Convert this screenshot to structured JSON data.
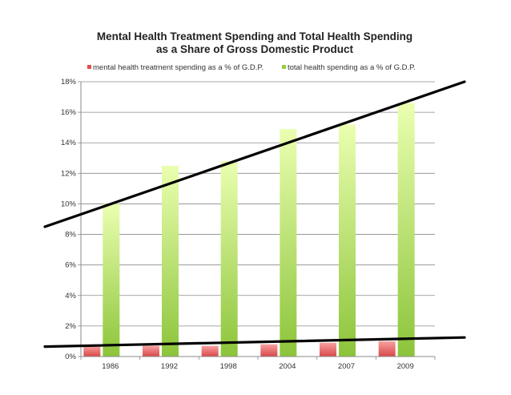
{
  "chart_data": {
    "type": "bar",
    "title_lines": [
      "Mental Health Treatment Spending and Total Health Spending",
      "as a Share of Gross Domestic Product"
    ],
    "categories": [
      "1986",
      "1992",
      "1998",
      "2004",
      "2007",
      "2009"
    ],
    "series": [
      {
        "name": "mental health treatment spending as a % of G.D.P.",
        "color": "#e05050",
        "values": [
          0.7,
          0.7,
          0.7,
          0.8,
          0.9,
          1.0
        ]
      },
      {
        "name": "total health spending as a % of G.D.P.",
        "color": "#9acd3c",
        "values": [
          10.0,
          12.5,
          12.8,
          14.9,
          15.2,
          16.6
        ]
      }
    ],
    "y_ticks": [
      "0%",
      "2%",
      "4%",
      "6%",
      "8%",
      "10%",
      "12%",
      "14%",
      "16%",
      "18%"
    ],
    "ylim": [
      0,
      18
    ],
    "grid": true,
    "legend_position": "top",
    "annotations": [
      {
        "type": "trend-line",
        "target": "total health spending",
        "from": 8.5,
        "to": 18.0
      },
      {
        "type": "trend-line",
        "target": "mental health treatment spending",
        "from": 0.65,
        "to": 1.25
      }
    ]
  }
}
